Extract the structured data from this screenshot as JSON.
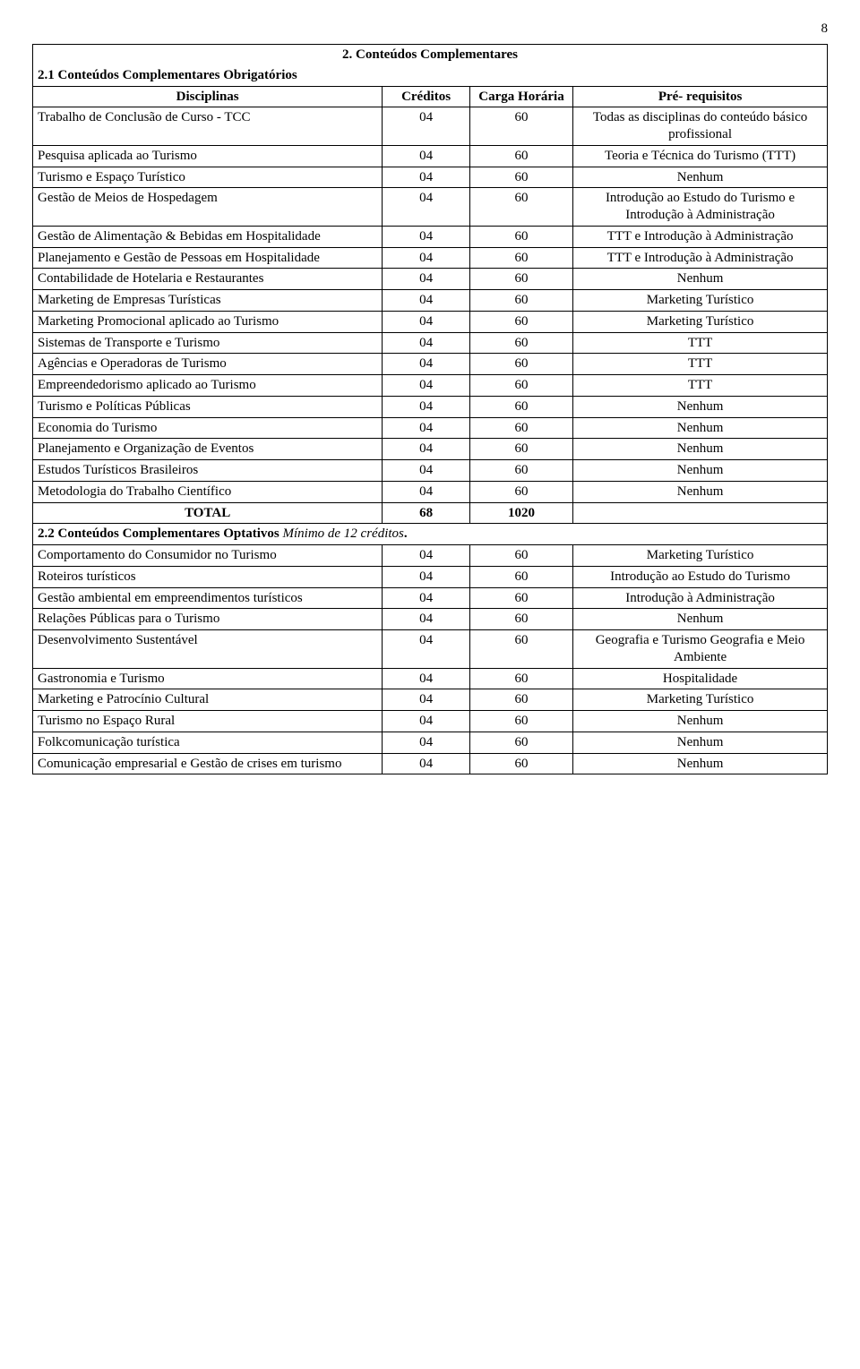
{
  "page_number": "8",
  "section_title": "2. Conteúdos Complementares",
  "subsection1": "2.1 Conteúdos Complementares Obrigatórios",
  "headers": {
    "disciplinas": "Disciplinas",
    "creditos": "Créditos",
    "carga": "Carga Horária",
    "prereq": "Pré- requisitos"
  },
  "rows1": [
    {
      "d": "Trabalho de Conclusão de Curso - TCC",
      "c": "04",
      "h": "60",
      "p": "Todas as disciplinas do conteúdo básico profissional"
    },
    {
      "d": "Pesquisa aplicada ao Turismo",
      "c": "04",
      "h": "60",
      "p": "Teoria e Técnica do Turismo (TTT)"
    },
    {
      "d": "Turismo e Espaço Turístico",
      "c": "04",
      "h": "60",
      "p": "Nenhum"
    },
    {
      "d": "Gestão de Meios de Hospedagem",
      "c": "04",
      "h": "60",
      "p": "Introdução ao Estudo do Turismo e Introdução à Administração"
    },
    {
      "d": "Gestão de Alimentação & Bebidas em Hospitalidade",
      "c": "04",
      "h": "60",
      "p": "TTT e Introdução à Administração"
    },
    {
      "d": "Planejamento e Gestão de Pessoas em Hospitalidade",
      "c": "04",
      "h": "60",
      "p": "TTT e Introdução à Administração"
    },
    {
      "d": "Contabilidade de Hotelaria e Restaurantes",
      "c": "04",
      "h": "60",
      "p": "Nenhum"
    },
    {
      "d": "Marketing de Empresas Turísticas",
      "c": "04",
      "h": "60",
      "p": "Marketing Turístico"
    },
    {
      "d": "Marketing Promocional aplicado ao Turismo",
      "c": "04",
      "h": "60",
      "p": "Marketing Turístico"
    },
    {
      "d": "Sistemas de Transporte e Turismo",
      "c": "04",
      "h": "60",
      "p": "TTT"
    },
    {
      "d": "Agências e Operadoras de Turismo",
      "c": "04",
      "h": "60",
      "p": "TTT"
    },
    {
      "d": "Empreendedorismo aplicado ao Turismo",
      "c": "04",
      "h": "60",
      "p": "TTT"
    },
    {
      "d": "Turismo e Políticas Públicas",
      "c": "04",
      "h": "60",
      "p": "Nenhum"
    },
    {
      "d": "Economia do Turismo",
      "c": "04",
      "h": "60",
      "p": "Nenhum"
    },
    {
      "d": "Planejamento e Organização de Eventos",
      "c": "04",
      "h": "60",
      "p": "Nenhum"
    },
    {
      "d": "Estudos Turísticos Brasileiros",
      "c": "04",
      "h": "60",
      "p": "Nenhum"
    },
    {
      "d": "Metodologia do Trabalho Científico",
      "c": "04",
      "h": "60",
      "p": "Nenhum"
    }
  ],
  "total": {
    "label": "TOTAL",
    "creditos": "68",
    "carga": "1020"
  },
  "subsection2_label": "2.2 Conteúdos Complementares Optativos",
  "subsection2_note": "Mínimo de 12 créditos",
  "subsection2_period": ".",
  "rows2": [
    {
      "d": "Comportamento do Consumidor no Turismo",
      "c": "04",
      "h": "60",
      "p": "Marketing Turístico"
    },
    {
      "d": "Roteiros turísticos",
      "c": "04",
      "h": "60",
      "p": "Introdução ao Estudo do Turismo"
    },
    {
      "d": "Gestão ambiental em empreendimentos turísticos",
      "c": "04",
      "h": "60",
      "p": "Introdução à Administração"
    },
    {
      "d": "Relações Públicas para o Turismo",
      "c": "04",
      "h": "60",
      "p": "Nenhum"
    },
    {
      "d": "Desenvolvimento Sustentável",
      "c": "04",
      "h": "60",
      "p": "Geografia e Turismo Geografia e Meio Ambiente"
    },
    {
      "d": "Gastronomia e Turismo",
      "c": "04",
      "h": "60",
      "p": "Hospitalidade"
    },
    {
      "d": "Marketing e Patrocínio Cultural",
      "c": "04",
      "h": "60",
      "p": "Marketing Turístico"
    },
    {
      "d": "Turismo no Espaço Rural",
      "c": "04",
      "h": "60",
      "p": "Nenhum"
    },
    {
      "d": "Folkcomunicação turística",
      "c": "04",
      "h": "60",
      "p": "Nenhum"
    },
    {
      "d": "Comunicação empresarial e Gestão de crises em turismo",
      "c": "04",
      "h": "60",
      "p": "Nenhum"
    }
  ]
}
